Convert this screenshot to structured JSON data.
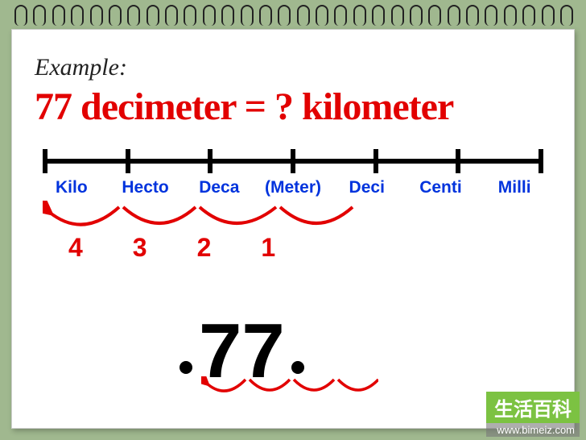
{
  "colors": {
    "background": "#a0b88f",
    "paper": "#ffffff",
    "red": "#e20000",
    "blue": "#0033dd",
    "black": "#000000",
    "green": "#7cc242"
  },
  "example_label": "Example:",
  "equation": "77 decimeter = ? kilometer",
  "scale": {
    "labels": [
      "Kilo",
      "Hecto",
      "Deca",
      "(Meter)",
      "Deci",
      "Centi",
      "Milli"
    ],
    "tick_count": 7,
    "line_thickness": 6,
    "label_color": "#0033dd",
    "label_fontsize": 21
  },
  "hops": {
    "counts": [
      "4",
      "3",
      "2",
      "1"
    ],
    "count_color": "#e20000",
    "count_fontsize": 32,
    "arc_color": "#e20000",
    "arc_stroke": 4
  },
  "big_number": {
    "left_dot": true,
    "value": "77",
    "right_dot": true,
    "fontsize": 96,
    "arc_color": "#e20000",
    "arc_count": 4
  },
  "spiral": {
    "ring_count": 30
  },
  "watermark": {
    "title": "生活百科",
    "url": "www.bimeiz.com"
  }
}
